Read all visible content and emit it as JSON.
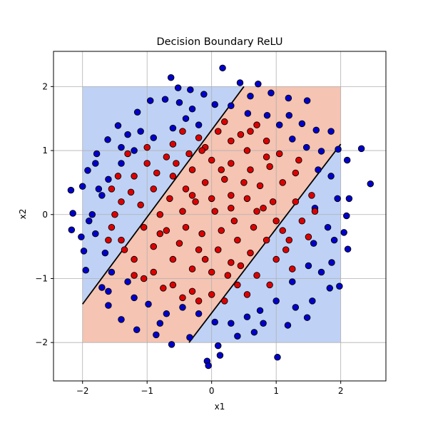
{
  "chart_data": {
    "type": "scatter",
    "title": "Decision Boundary ReLU",
    "xlabel": "x1",
    "ylabel": "x2",
    "xlim": [
      -2.45,
      2.7
    ],
    "ylim": [
      -2.6,
      2.55
    ],
    "x_ticks": [
      -2,
      -1,
      0,
      1,
      2
    ],
    "y_ticks": [
      -2,
      -1,
      0,
      1,
      2
    ],
    "x_tick_labels": [
      "−2",
      "−1",
      "0",
      "1",
      "2"
    ],
    "y_tick_labels": [
      "−2",
      "−1",
      "0",
      "1",
      "2"
    ],
    "grid": true,
    "region": {
      "x_range": [
        -2,
        2
      ],
      "y_range": [
        -2,
        2
      ],
      "colors": {
        "class_0": "#bfd2f5",
        "class_1": "#f5c4b2"
      }
    },
    "boundary_lines": [
      {
        "points": [
          [
            -2.0,
            -1.4
          ],
          [
            0.5,
            2.0
          ]
        ]
      },
      {
        "points": [
          [
            -0.35,
            -2.0
          ],
          [
            2.0,
            1.1
          ]
        ]
      }
    ],
    "series": [
      {
        "class": 0,
        "color": "#0000cc",
        "points": [
          [
            0.17,
            2.29
          ],
          [
            0.44,
            2.06
          ],
          [
            0.72,
            2.04
          ],
          [
            -0.63,
            2.14
          ],
          [
            0.92,
            1.9
          ],
          [
            -0.33,
            1.95
          ],
          [
            -0.12,
            1.88
          ],
          [
            1.19,
            1.82
          ],
          [
            1.48,
            1.78
          ],
          [
            1.4,
            1.42
          ],
          [
            1.62,
            1.32
          ],
          [
            1.85,
            1.3
          ],
          [
            1.96,
            1.02
          ],
          [
            2.1,
            0.85
          ],
          [
            2.32,
            1.03
          ],
          [
            2.46,
            0.48
          ],
          [
            2.13,
            0.25
          ],
          [
            2.09,
            -0.02
          ],
          [
            2.05,
            -0.28
          ],
          [
            2.11,
            -0.54
          ],
          [
            1.86,
            -0.75
          ],
          [
            1.98,
            -1.12
          ],
          [
            1.83,
            -1.15
          ],
          [
            1.56,
            -1.35
          ],
          [
            1.48,
            -1.61
          ],
          [
            1.18,
            -1.73
          ],
          [
            1.02,
            -2.23
          ],
          [
            0.66,
            -1.84
          ],
          [
            0.4,
            -1.9
          ],
          [
            0.13,
            -2.2
          ],
          [
            0.1,
            -2.05
          ],
          [
            -0.07,
            -2.29
          ],
          [
            -0.05,
            -2.36
          ],
          [
            -0.34,
            -1.92
          ],
          [
            -0.62,
            -2.03
          ],
          [
            -0.86,
            -1.88
          ],
          [
            -1.16,
            -1.8
          ],
          [
            -1.4,
            -1.64
          ],
          [
            -1.6,
            -1.42
          ],
          [
            -1.7,
            -1.14
          ],
          [
            -1.95,
            -0.87
          ],
          [
            -1.98,
            -0.57
          ],
          [
            -2.02,
            -0.35
          ],
          [
            -2.17,
            -0.24
          ],
          [
            -2.15,
            0.02
          ],
          [
            -2.18,
            0.38
          ],
          [
            -2.0,
            0.44
          ],
          [
            -1.92,
            0.69
          ],
          [
            -1.78,
            0.95
          ],
          [
            -1.61,
            1.17
          ],
          [
            -1.45,
            1.39
          ],
          [
            -1.15,
            1.6
          ],
          [
            -0.95,
            1.78
          ],
          [
            -0.72,
            1.8
          ],
          [
            -0.52,
            1.98
          ],
          [
            -0.3,
            1.65
          ],
          [
            0.05,
            1.72
          ],
          [
            0.3,
            1.7
          ],
          [
            0.56,
            1.58
          ],
          [
            0.86,
            1.55
          ],
          [
            1.05,
            1.4
          ],
          [
            1.25,
            1.18
          ],
          [
            1.47,
            1.05
          ],
          [
            1.7,
            0.99
          ],
          [
            1.85,
            0.6
          ],
          [
            1.95,
            0.25
          ],
          [
            1.6,
            0.1
          ],
          [
            1.8,
            -0.2
          ],
          [
            1.58,
            -0.45
          ],
          [
            1.5,
            -0.8
          ],
          [
            1.25,
            -1.05
          ],
          [
            1.0,
            -1.35
          ],
          [
            0.75,
            -1.5
          ],
          [
            0.55,
            -1.6
          ],
          [
            0.3,
            -1.7
          ],
          [
            0.05,
            -1.68
          ],
          [
            -0.2,
            -1.55
          ],
          [
            -0.45,
            -1.45
          ],
          [
            -0.7,
            -1.55
          ],
          [
            -0.98,
            -1.4
          ],
          [
            -1.2,
            -1.3
          ],
          [
            -1.3,
            -1.05
          ],
          [
            -1.55,
            -0.9
          ],
          [
            -1.65,
            -0.6
          ],
          [
            -1.8,
            -0.3
          ],
          [
            -1.85,
            0.0
          ],
          [
            -1.7,
            0.3
          ],
          [
            -1.6,
            0.55
          ],
          [
            -1.4,
            0.8
          ],
          [
            -1.2,
            1.0
          ],
          [
            -0.9,
            1.2
          ],
          [
            -0.6,
            1.35
          ],
          [
            -0.4,
            1.5
          ],
          [
            -0.2,
            1.4
          ],
          [
            -1.1,
            1.3
          ],
          [
            -1.4,
            1.05
          ],
          [
            -1.75,
            0.4
          ],
          [
            -1.9,
            -0.1
          ],
          [
            -1.6,
            -1.2
          ],
          [
            -0.8,
            -1.7
          ],
          [
            0.8,
            -1.7
          ],
          [
            1.3,
            -1.45
          ],
          [
            1.7,
            -0.9
          ],
          [
            1.9,
            -0.4
          ],
          [
            1.65,
            0.7
          ],
          [
            1.2,
            1.55
          ],
          [
            0.6,
            1.85
          ],
          [
            -0.5,
            1.75
          ],
          [
            -1.3,
            1.25
          ],
          [
            -1.8,
            0.8
          ]
        ]
      },
      {
        "class": 1,
        "color": "#dd0000",
        "points": [
          [
            0.7,
            1.4
          ],
          [
            0.1,
            1.3
          ],
          [
            0.3,
            1.15
          ],
          [
            -0.1,
            1.05
          ],
          [
            0.55,
            1.0
          ],
          [
            0.85,
            0.9
          ],
          [
            -0.35,
            0.95
          ],
          [
            -0.7,
            0.9
          ],
          [
            -1.0,
            0.8
          ],
          [
            -1.2,
            0.6
          ],
          [
            -1.4,
            0.2
          ],
          [
            -1.5,
            0.0
          ],
          [
            -1.4,
            -0.4
          ],
          [
            -1.2,
            -0.7
          ],
          [
            -0.9,
            -0.9
          ],
          [
            -0.6,
            -1.1
          ],
          [
            -0.3,
            -1.2
          ],
          [
            0.0,
            -1.25
          ],
          [
            0.4,
            -1.1
          ],
          [
            0.7,
            -0.95
          ],
          [
            1.0,
            -0.7
          ],
          [
            1.2,
            -0.4
          ],
          [
            1.4,
            -0.1
          ],
          [
            1.3,
            0.2
          ],
          [
            1.1,
            0.5
          ],
          [
            0.9,
            0.75
          ],
          [
            0.6,
            0.7
          ],
          [
            0.3,
            0.8
          ],
          [
            0.0,
            0.85
          ],
          [
            -0.3,
            0.7
          ],
          [
            -0.6,
            0.6
          ],
          [
            -0.9,
            0.4
          ],
          [
            -1.1,
            0.15
          ],
          [
            -1.05,
            -0.2
          ],
          [
            -0.9,
            -0.5
          ],
          [
            -0.6,
            -0.7
          ],
          [
            -0.3,
            -0.85
          ],
          [
            0.0,
            -0.9
          ],
          [
            0.3,
            -0.75
          ],
          [
            0.6,
            -0.6
          ],
          [
            0.85,
            -0.4
          ],
          [
            1.0,
            -0.1
          ],
          [
            0.95,
            0.2
          ],
          [
            0.75,
            0.45
          ],
          [
            0.5,
            0.5
          ],
          [
            0.2,
            0.55
          ],
          [
            -0.1,
            0.5
          ],
          [
            -0.4,
            0.4
          ],
          [
            -0.65,
            0.25
          ],
          [
            -0.8,
            0.0
          ],
          [
            -0.7,
            -0.25
          ],
          [
            -0.5,
            -0.45
          ],
          [
            -0.2,
            -0.55
          ],
          [
            0.1,
            -0.55
          ],
          [
            0.4,
            -0.4
          ],
          [
            0.65,
            -0.2
          ],
          [
            0.7,
            0.05
          ],
          [
            0.55,
            0.25
          ],
          [
            0.3,
            0.3
          ],
          [
            0.0,
            0.25
          ],
          [
            -0.25,
            0.2
          ],
          [
            -0.45,
            0.05
          ],
          [
            -0.4,
            -0.2
          ],
          [
            -0.15,
            -0.3
          ],
          [
            0.15,
            -0.25
          ],
          [
            0.35,
            -0.1
          ],
          [
            0.3,
            0.1
          ],
          [
            0.05,
            0.05
          ],
          [
            -0.6,
            1.1
          ],
          [
            -0.2,
            1.2
          ],
          [
            0.45,
            1.25
          ],
          [
            1.05,
            0.95
          ],
          [
            1.3,
            0.65
          ],
          [
            1.55,
            0.3
          ],
          [
            1.5,
            -0.35
          ],
          [
            1.25,
            -0.85
          ],
          [
            0.9,
            -1.1
          ],
          [
            0.2,
            -1.35
          ],
          [
            -0.2,
            -1.35
          ],
          [
            -0.75,
            -1.15
          ],
          [
            -1.05,
            -1.0
          ],
          [
            -1.35,
            -0.55
          ],
          [
            -1.55,
            -0.2
          ],
          [
            -1.55,
            0.4
          ],
          [
            -1.3,
            0.95
          ],
          [
            -1.0,
            1.05
          ],
          [
            -0.45,
            1.3
          ],
          [
            0.2,
            1.45
          ],
          [
            0.6,
            1.3
          ],
          [
            -1.6,
            -0.4
          ],
          [
            -1.2,
            -0.95
          ],
          [
            -0.45,
            -1.3
          ],
          [
            0.55,
            -1.25
          ],
          [
            1.15,
            -0.55
          ],
          [
            1.6,
            0.05
          ],
          [
            1.35,
            0.85
          ],
          [
            0.85,
            1.15
          ],
          [
            -0.15,
            1.0
          ],
          [
            -0.85,
            0.65
          ],
          [
            -1.25,
            0.35
          ],
          [
            -0.3,
            0.3
          ],
          [
            0.15,
            0.7
          ],
          [
            0.45,
            -0.8
          ],
          [
            -0.8,
            -0.3
          ],
          [
            0.8,
            0.1
          ],
          [
            -0.1,
            -0.7
          ],
          [
            0.25,
            -0.95
          ],
          [
            -0.55,
            0.8
          ],
          [
            1.1,
            -0.25
          ],
          [
            -1.45,
            0.6
          ]
        ]
      }
    ]
  }
}
